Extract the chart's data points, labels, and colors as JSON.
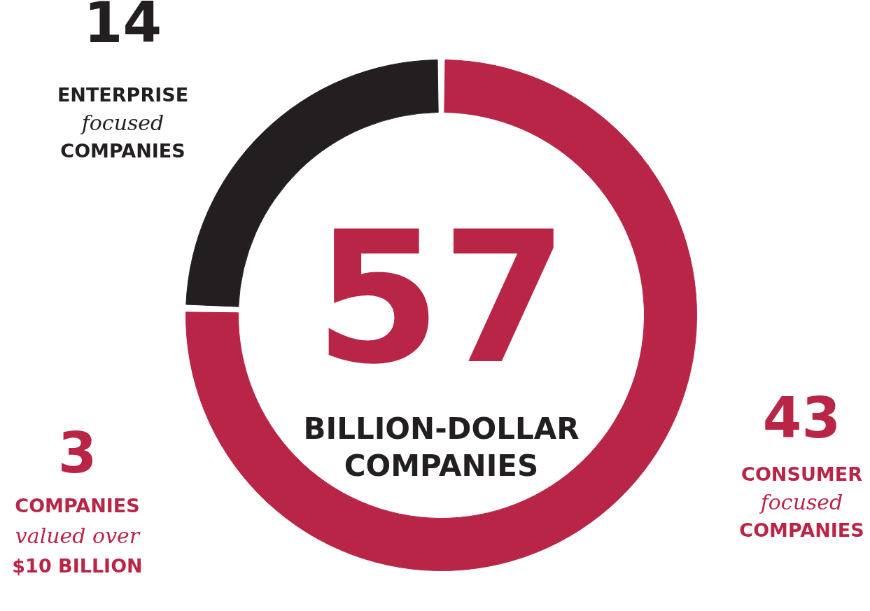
{
  "chart_data": {
    "type": "donut",
    "title": "57",
    "subtitle": "BILLION-DOLLAR\nCOMPANIES",
    "categories": [
      "ENTERPRISE\nfocused\nCOMPANIES",
      "CONSUMER\nfocused\nCOMPANIES"
    ],
    "values": [
      14,
      43
    ],
    "colors": [
      "#231f20",
      "#b92546"
    ],
    "data_labels": true,
    "annotations": [
      "3\nCOMPANIES\nvalued over\n$10 BILLION"
    ]
  }
}
